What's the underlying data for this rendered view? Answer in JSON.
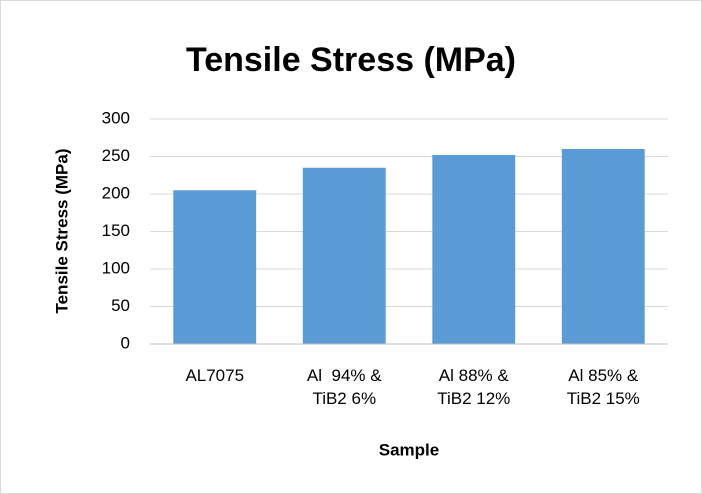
{
  "chart_data": {
    "type": "bar",
    "title": "Tensile Stress (MPa)",
    "y_label": "Tensile Stress (MPa)",
    "x_label": "Sample",
    "categories": [
      "AL7075",
      "Al  94% & TiB2 6%",
      "Al 88% & TiB2 12%",
      "Al 85% & TiB2 15%"
    ],
    "values": [
      205,
      235,
      252,
      260
    ],
    "color": "#5b9bd5",
    "ylim": [
      0,
      300
    ],
    "yticks": [
      0,
      50,
      100,
      150,
      200,
      250,
      300
    ],
    "grid": true
  }
}
